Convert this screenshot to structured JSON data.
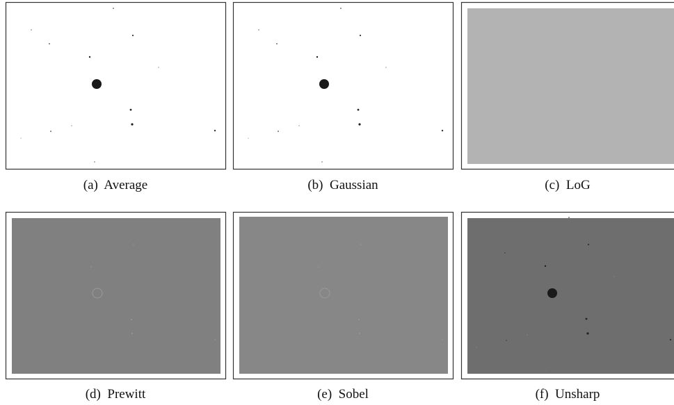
{
  "figure": {
    "panels": [
      {
        "caption": "(a)  Average"
      },
      {
        "caption": "(b)  Gaussian"
      },
      {
        "caption": "(c)  LoG"
      },
      {
        "caption": "(d)  Prewitt"
      },
      {
        "caption": "(e)  Sobel"
      },
      {
        "caption": "(f)  Unsharp"
      }
    ]
  }
}
